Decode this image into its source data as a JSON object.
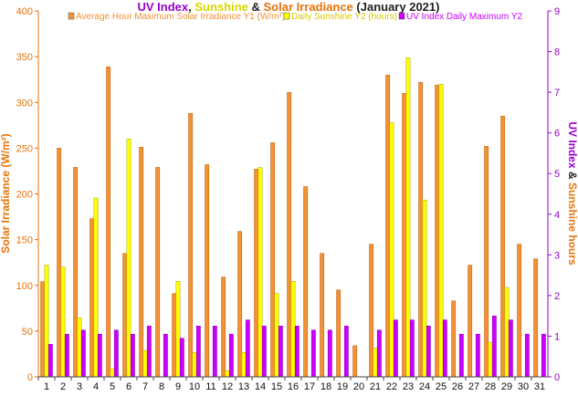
{
  "chart_data": {
    "type": "bar",
    "title_parts": [
      {
        "text": "UV Index",
        "color": "#9900cc"
      },
      {
        "text": ", ",
        "color": "#222222"
      },
      {
        "text": "Sunshine",
        "color": "#d8d800"
      },
      {
        "text": " & ",
        "color": "#222222"
      },
      {
        "text": "Solar Irradiance",
        "color": "#e8730a"
      },
      {
        "text": " (January 2021)",
        "color": "#222222"
      }
    ],
    "ylabel_left": "Solar Irradiance (W/m²)",
    "ylabel_right_parts": [
      {
        "text": "UV Index",
        "color": "#9900cc"
      },
      {
        "text": " & ",
        "color": "#222222"
      },
      {
        "text": "Sunshine hours",
        "color": "#e8730a"
      }
    ],
    "ylim_left": [
      0,
      400
    ],
    "ylim_right": [
      0,
      9
    ],
    "yticks_left": [
      "0",
      "50",
      "100",
      "150",
      "200",
      "250",
      "300",
      "350",
      "400"
    ],
    "yticks_right": [
      "0",
      "1",
      "2",
      "3",
      "4",
      "5",
      "6",
      "7",
      "8",
      "9"
    ],
    "categories": [
      "1",
      "2",
      "3",
      "4",
      "5",
      "6",
      "7",
      "8",
      "9",
      "10",
      "11",
      "12",
      "13",
      "14",
      "15",
      "16",
      "17",
      "18",
      "19",
      "20",
      "21",
      "22",
      "23",
      "24",
      "25",
      "26",
      "27",
      "28",
      "29",
      "30",
      "31"
    ],
    "grid": false,
    "legend_position": "top",
    "series": [
      {
        "name": "Average Hour Maximum Solar Irradiance Y1 (W/m²)",
        "axis": "left",
        "color": "#f39233",
        "values": [
          104,
          250,
          229,
          173,
          339,
          135,
          251,
          229,
          91,
          288,
          232,
          109,
          159,
          227,
          256,
          311,
          208,
          135,
          95,
          34,
          145,
          330,
          310,
          322,
          319,
          83,
          122,
          252,
          285,
          145,
          129
        ]
      },
      {
        "name": "Daily Sunshine Y2 (hours)",
        "axis": "right",
        "color": "#ffff00",
        "values": [
          2.75,
          2.7,
          1.45,
          4.4,
          0.2,
          5.85,
          0.65,
          0,
          2.35,
          0.6,
          0,
          0.15,
          0.6,
          5.15,
          2.05,
          2.35,
          0,
          0,
          0,
          0,
          0.7,
          6.25,
          7.85,
          4.35,
          7.2,
          0,
          0,
          0.85,
          2.2,
          0,
          0
        ]
      },
      {
        "name": "UV Index Daily Maximum Y2",
        "axis": "right",
        "color": "#cc00ff",
        "values": [
          0.8,
          1.05,
          1.15,
          1.05,
          1.15,
          1.05,
          1.25,
          1.05,
          0.95,
          1.25,
          1.25,
          1.05,
          1.4,
          1.25,
          1.25,
          1.25,
          1.15,
          1.15,
          1.25,
          0,
          1.15,
          1.4,
          1.4,
          1.25,
          1.4,
          1.05,
          1.05,
          1.5,
          1.4,
          1.05,
          1.05
        ]
      }
    ]
  }
}
